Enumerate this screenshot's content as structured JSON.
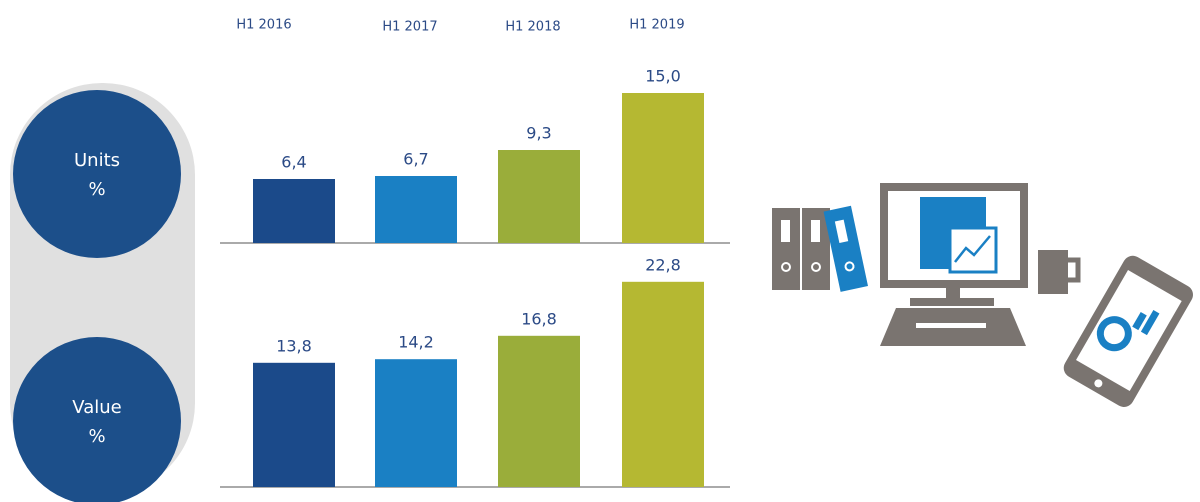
{
  "chart_data": [
    {
      "type": "bar",
      "title": "Units",
      "subtitle": "%",
      "categories": [
        "H1 2016",
        "H1 2017",
        "H1 2018",
        "H1 2019"
      ],
      "values": [
        6.4,
        6.7,
        9.3,
        15.0
      ],
      "value_labels": [
        "6,4",
        "6,7",
        "9,3",
        "15,0"
      ],
      "colors": [
        "#1b4a8a",
        "#1a80c4",
        "#9aad3a",
        "#b5b832"
      ]
    },
    {
      "type": "bar",
      "title": "Value",
      "subtitle": "%",
      "values": [
        13.8,
        14.2,
        16.8,
        22.8
      ],
      "value_labels": [
        "13,8",
        "14,2",
        "16,8",
        "22,8"
      ],
      "colors": [
        "#1b4a8a",
        "#1a80c4",
        "#9aad3a",
        "#b5b832"
      ]
    }
  ]
}
